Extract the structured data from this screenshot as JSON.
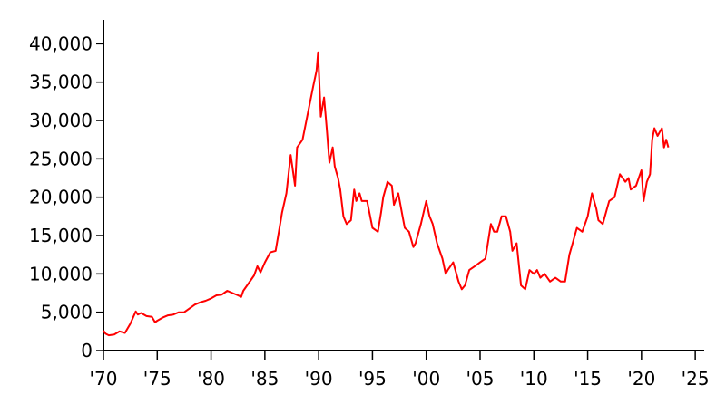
{
  "chart_data": {
    "type": "line",
    "title": "",
    "xlabel": "",
    "ylabel": "",
    "xlim": [
      1970,
      2026
    ],
    "ylim": [
      0,
      43000
    ],
    "grid": false,
    "line_color": "#ff0000",
    "x_ticks": [
      1970,
      1975,
      1980,
      1985,
      1990,
      1995,
      2000,
      2005,
      2010,
      2015,
      2020,
      2025
    ],
    "x_tick_labels": [
      "'70",
      "'75",
      "'80",
      "'85",
      "'90",
      "'95",
      "'00",
      "'05",
      "'10",
      "'15",
      "'20",
      "'25"
    ],
    "y_ticks": [
      0,
      5000,
      10000,
      15000,
      20000,
      25000,
      30000,
      35000,
      40000
    ],
    "y_tick_labels": [
      "0",
      "5,000",
      "10,000",
      "15,000",
      "20,000",
      "25,000",
      "30,000",
      "35,000",
      "40,000"
    ],
    "series": [
      {
        "x": [
          1970.0,
          1970.2,
          1970.5,
          1971.0,
          1971.5,
          1972.0,
          1972.5,
          1973.0,
          1973.2,
          1973.5,
          1974.0,
          1974.5,
          1974.8,
          1975.0,
          1975.5,
          1976.0,
          1976.5,
          1977.0,
          1977.5,
          1978.0,
          1978.5,
          1979.0,
          1979.5,
          1980.0,
          1980.5,
          1981.0,
          1981.5,
          1982.0,
          1982.5,
          1982.8,
          1983.0,
          1983.5,
          1984.0,
          1984.3,
          1984.6,
          1985.0,
          1985.5,
          1986.0,
          1986.3,
          1986.6,
          1987.0,
          1987.4,
          1987.6,
          1987.8,
          1988.0,
          1988.5,
          1989.0,
          1989.5,
          1989.8,
          1989.95,
          1990.2,
          1990.5,
          1990.75,
          1991.0,
          1991.3,
          1991.5,
          1991.8,
          1992.0,
          1992.3,
          1992.6,
          1993.0,
          1993.3,
          1993.5,
          1993.8,
          1994.0,
          1994.5,
          1995.0,
          1995.5,
          1995.8,
          1996.0,
          1996.4,
          1996.8,
          1997.0,
          1997.4,
          1997.8,
          1998.0,
          1998.4,
          1998.8,
          1999.0,
          1999.5,
          2000.0,
          2000.3,
          2000.6,
          2001.0,
          2001.5,
          2001.8,
          2002.0,
          2002.5,
          2003.0,
          2003.3,
          2003.6,
          2004.0,
          2004.5,
          2005.0,
          2005.5,
          2006.0,
          2006.3,
          2006.6,
          2007.0,
          2007.4,
          2007.8,
          2008.0,
          2008.4,
          2008.8,
          2009.2,
          2009.6,
          2010.0,
          2010.3,
          2010.6,
          2011.0,
          2011.5,
          2012.0,
          2012.5,
          2012.9,
          2013.3,
          2013.6,
          2014.0,
          2014.5,
          2015.0,
          2015.4,
          2015.8,
          2016.0,
          2016.4,
          2016.8,
          2017.0,
          2017.5,
          2018.0,
          2018.5,
          2018.8,
          2019.0,
          2019.5,
          2020.0,
          2020.2,
          2020.5,
          2020.8,
          2021.0,
          2021.2,
          2021.5,
          2021.7,
          2021.9,
          2022.1,
          2022.3,
          2022.5
        ],
        "values": [
          2600,
          2200,
          2000,
          2100,
          2500,
          2300,
          3500,
          5100,
          4700,
          4900,
          4500,
          4400,
          3700,
          3900,
          4300,
          4600,
          4700,
          5000,
          5000,
          5500,
          6000,
          6300,
          6500,
          6800,
          7200,
          7300,
          7800,
          7500,
          7200,
          7000,
          7800,
          8800,
          9800,
          11000,
          10200,
          11500,
          12800,
          13000,
          15500,
          18000,
          20500,
          25500,
          23500,
          21500,
          26500,
          27500,
          31000,
          34500,
          36500,
          38900,
          30500,
          33000,
          29000,
          24500,
          26500,
          24000,
          22500,
          21000,
          17500,
          16500,
          17000,
          21000,
          19500,
          20500,
          19500,
          19500,
          16000,
          15500,
          18000,
          20000,
          22000,
          21500,
          19000,
          20500,
          17500,
          16000,
          15500,
          13500,
          14000,
          16500,
          19500,
          17500,
          16500,
          14000,
          12000,
          10000,
          10500,
          11500,
          9000,
          8000,
          8500,
          10500,
          11000,
          11500,
          12000,
          16500,
          15500,
          15500,
          17500,
          17500,
          15500,
          13000,
          14000,
          8500,
          8000,
          10500,
          10000,
          10500,
          9500,
          10000,
          9000,
          9500,
          9000,
          9000,
          12500,
          14000,
          16000,
          15500,
          17500,
          20500,
          18500,
          17000,
          16500,
          18500,
          19500,
          20000,
          23000,
          22000,
          22500,
          21000,
          21500,
          23500,
          19500,
          22000,
          23000,
          27500,
          29000,
          28000,
          28500,
          29000,
          26500,
          27500,
          26500
        ]
      }
    ]
  }
}
